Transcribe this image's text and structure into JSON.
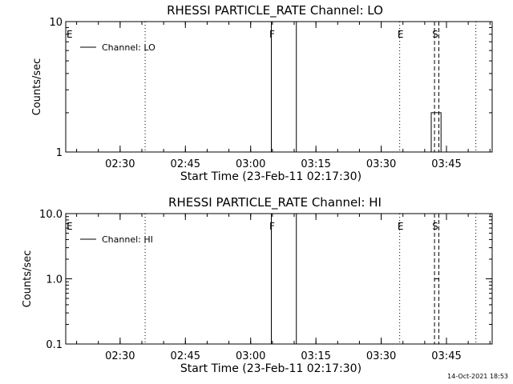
{
  "footer": {
    "timestamp": "14-Oct-2021 18:53"
  },
  "chart_data": [
    {
      "type": "line",
      "title": "RHESSI PARTICLE_RATE Channel: LO",
      "xlabel": "Start Time (23-Feb-11 02:17:30)",
      "ylabel": "Counts/sec",
      "yscale": "log",
      "ylim": [
        1,
        10
      ],
      "xlim": [
        "02:17:30",
        "03:55:30"
      ],
      "x_ticks": [
        "02:30",
        "02:45",
        "03:00",
        "03:15",
        "03:30",
        "03:45"
      ],
      "y_ticks": [
        "1",
        "10"
      ],
      "legend": {
        "placement": "top-left",
        "entries": [
          "Channel: LO"
        ]
      },
      "series": [
        {
          "name": "Channel: LO",
          "points": [
            [
              "03:04:45",
              1
            ],
            [
              "03:04:45",
              10
            ],
            [
              "03:10:30",
              10
            ],
            [
              "03:10:30",
              1
            ],
            [
              "03:41:30",
              1
            ],
            [
              "03:41:30",
              2
            ],
            [
              "03:43:45",
              2
            ],
            [
              "03:43:45",
              1
            ]
          ]
        }
      ],
      "event_lines": [
        {
          "time": "02:17:30",
          "style": "dotted",
          "label": "E"
        },
        {
          "time": "02:35:45",
          "style": "dotted",
          "label": ""
        },
        {
          "time": "03:04:45",
          "style": "dotted",
          "label": "F"
        },
        {
          "time": "03:34:15",
          "style": "dotted",
          "label": "E"
        },
        {
          "time": "03:42:15",
          "style": "dashed",
          "label": "S"
        },
        {
          "time": "03:43:15",
          "style": "dashed",
          "label": ""
        },
        {
          "time": "03:51:45",
          "style": "dotted",
          "label": ""
        }
      ]
    },
    {
      "type": "line",
      "title": "RHESSI PARTICLE_RATE Channel: HI",
      "xlabel": "Start Time (23-Feb-11 02:17:30)",
      "ylabel": "Counts/sec",
      "yscale": "log",
      "ylim": [
        0.1,
        10
      ],
      "xlim": [
        "02:17:30",
        "03:55:30"
      ],
      "x_ticks": [
        "02:30",
        "02:45",
        "03:00",
        "03:15",
        "03:30",
        "03:45"
      ],
      "y_ticks": [
        "0.1",
        "1.0",
        "10.0"
      ],
      "legend": {
        "placement": "top-left",
        "entries": [
          "Channel: HI"
        ]
      },
      "series": [
        {
          "name": "Channel: HI",
          "points": [
            [
              "03:04:45",
              0.1
            ],
            [
              "03:04:45",
              10
            ],
            [
              "03:10:30",
              10
            ],
            [
              "03:10:30",
              0.1
            ],
            [
              "03:42:15",
              1
            ],
            [
              "03:43:15",
              1
            ]
          ]
        }
      ],
      "event_lines": [
        {
          "time": "02:17:30",
          "style": "dotted",
          "label": "E"
        },
        {
          "time": "02:35:45",
          "style": "dotted",
          "label": ""
        },
        {
          "time": "03:04:45",
          "style": "dotted",
          "label": "F"
        },
        {
          "time": "03:34:15",
          "style": "dotted",
          "label": "E"
        },
        {
          "time": "03:42:15",
          "style": "dashed",
          "label": "S"
        },
        {
          "time": "03:43:15",
          "style": "dashed",
          "label": ""
        },
        {
          "time": "03:51:45",
          "style": "dotted",
          "label": ""
        }
      ]
    }
  ]
}
